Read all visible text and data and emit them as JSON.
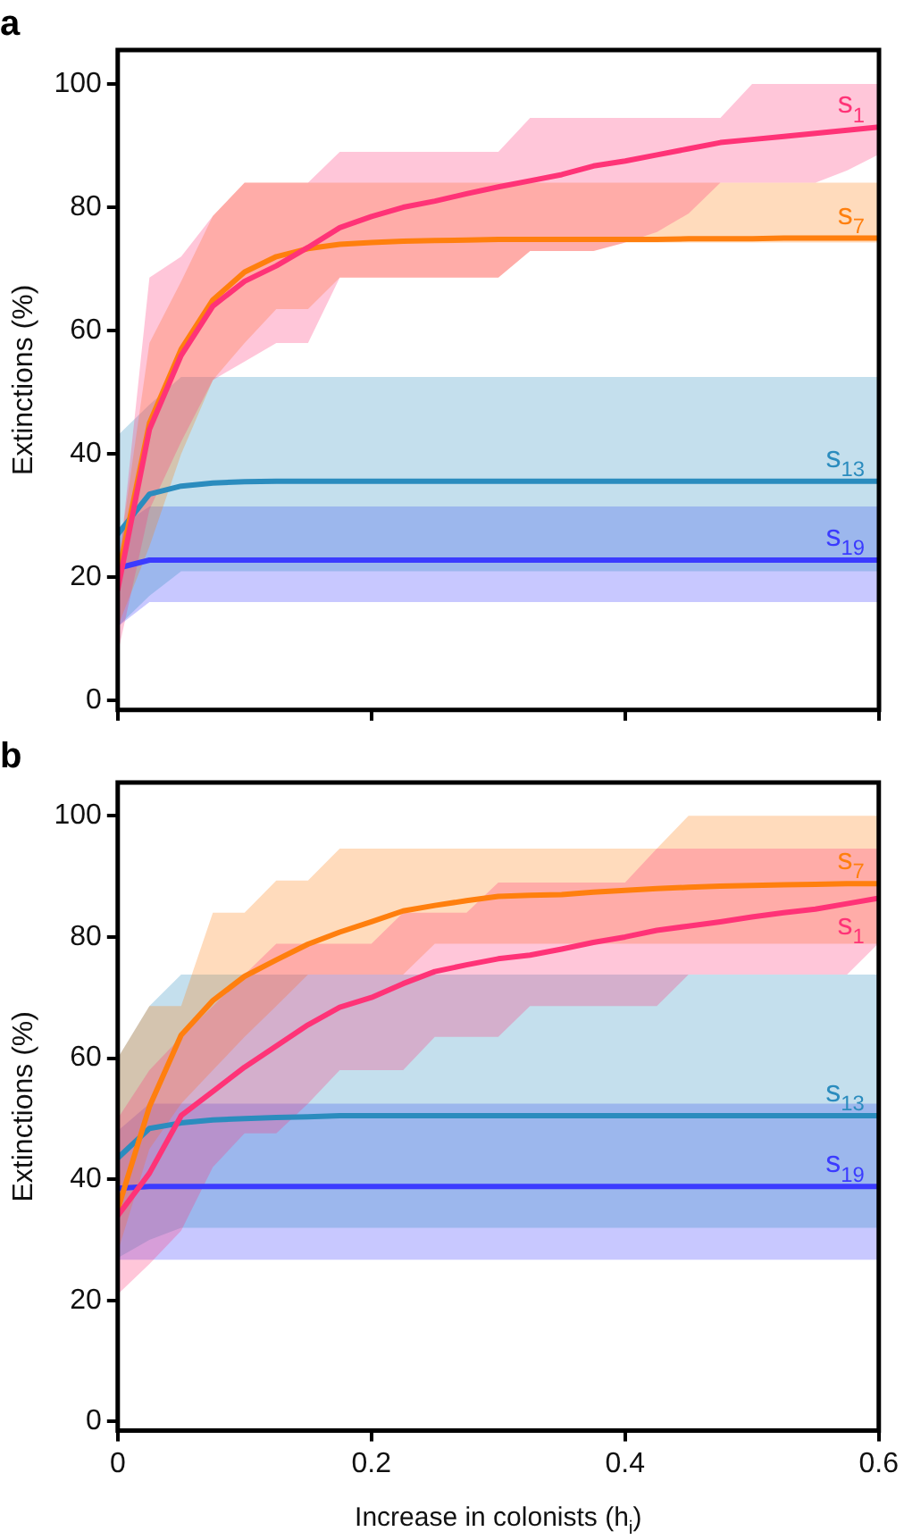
{
  "chart_data": [
    {
      "type": "line",
      "title": "a",
      "ylabel": "Extinctions (%)",
      "xlim": [
        0,
        0.6
      ],
      "xticks": [
        0,
        0.2,
        0.4,
        0.6
      ],
      "ylim": [
        -1.5,
        105.5
      ],
      "yticks": [
        0,
        20,
        40,
        60,
        80,
        100
      ],
      "tick_labels": "y",
      "x": [
        0,
        0.025,
        0.05,
        0.075,
        0.1,
        0.125,
        0.15,
        0.175,
        0.2,
        0.225,
        0.25,
        0.275,
        0.3,
        0.325,
        0.35,
        0.375,
        0.4,
        0.425,
        0.45,
        0.475,
        0.5,
        0.525,
        0.55,
        0.575,
        0.6
      ],
      "series": [
        {
          "name": "s$_{1}$",
          "color": "#ff3377",
          "values": [
            18,
            44,
            56,
            64,
            68,
            70.5,
            73.5,
            76.7,
            78.5,
            80,
            81,
            82.2,
            83.3,
            84.3,
            85.3,
            86.7,
            87.5,
            88.5,
            89.5,
            90.5,
            91,
            91.5,
            92,
            92.5,
            93
          ],
          "upper": [
            20,
            68.6,
            72,
            78.6,
            84,
            84,
            84,
            89,
            89,
            89,
            89,
            89,
            89,
            94.5,
            94.5,
            94.5,
            94.5,
            94.5,
            94.5,
            94.5,
            100,
            100,
            100,
            100,
            100
          ],
          "lower": [
            7.6,
            31,
            42,
            52,
            55,
            58,
            58,
            68.6,
            68.6,
            68.6,
            68.6,
            68.6,
            68.6,
            72.9,
            72.9,
            72.9,
            74.3,
            76,
            79,
            84,
            84,
            84,
            84,
            86,
            88.6
          ]
        },
        {
          "name": "s$_{7}$",
          "color": "#ff7f0e",
          "values": [
            20,
            45,
            57,
            65,
            69.5,
            72,
            73.3,
            74,
            74.3,
            74.5,
            74.6,
            74.7,
            74.8,
            74.8,
            74.8,
            74.8,
            74.8,
            74.8,
            74.9,
            74.9,
            74.9,
            75,
            75,
            75,
            75
          ],
          "upper": [
            22,
            58,
            68,
            78.6,
            84,
            84,
            84,
            84,
            84,
            84,
            84,
            84,
            84,
            84,
            84,
            84,
            84,
            84,
            84,
            84,
            84,
            84,
            84,
            84,
            84
          ],
          "lower": [
            12,
            25,
            40,
            52,
            58,
            63.5,
            63.5,
            68.6,
            68.6,
            68.6,
            68.6,
            68.6,
            68.6,
            72.9,
            72.9,
            72.9,
            74.3,
            74.3,
            74.3,
            74.3,
            74.3,
            74.3,
            74.3,
            74.3,
            74.3
          ]
        },
        {
          "name": "s$_{13}$",
          "color": "#2b8cbe",
          "values": [
            27,
            33.5,
            34.8,
            35.3,
            35.5,
            35.6,
            35.6,
            35.6,
            35.6,
            35.6,
            35.6,
            35.6,
            35.6,
            35.6,
            35.6,
            35.6,
            35.6,
            35.6,
            35.6,
            35.6,
            35.6,
            35.6,
            35.6,
            35.6,
            35.6
          ],
          "upper": [
            43,
            48,
            52.5,
            52.5,
            52.5,
            52.5,
            52.5,
            52.5,
            52.5,
            52.5,
            52.5,
            52.5,
            52.5,
            52.5,
            52.5,
            52.5,
            52.5,
            52.5,
            52.5,
            52.5,
            52.5,
            52.5,
            52.5,
            52.5,
            52.5
          ],
          "lower": [
            12,
            17,
            21,
            21,
            21,
            21,
            21,
            21,
            21,
            21,
            21,
            21,
            21,
            21,
            21,
            21,
            21,
            21,
            21,
            21,
            21,
            21,
            21,
            21,
            21
          ]
        },
        {
          "name": "s$_{19}$",
          "color": "#3b3bff",
          "values": [
            21.5,
            22.8,
            22.8,
            22.8,
            22.8,
            22.8,
            22.8,
            22.8,
            22.8,
            22.8,
            22.8,
            22.8,
            22.8,
            22.8,
            22.8,
            22.8,
            22.8,
            22.8,
            22.8,
            22.8,
            22.8,
            22.8,
            22.8,
            22.8,
            22.8
          ],
          "upper": [
            28,
            31.5,
            31.5,
            31.5,
            31.5,
            31.5,
            31.5,
            31.5,
            31.5,
            31.5,
            31.5,
            31.5,
            31.5,
            31.5,
            31.5,
            31.5,
            31.5,
            31.5,
            31.5,
            31.5,
            31.5,
            31.5,
            31.5,
            31.5,
            31.5
          ],
          "lower": [
            12,
            16,
            16,
            16,
            16,
            16,
            16,
            16,
            16,
            16,
            16,
            16,
            16,
            16,
            16,
            16,
            16,
            16,
            16,
            16,
            16,
            16,
            16,
            16,
            16
          ]
        }
      ]
    },
    {
      "type": "line",
      "title": "b",
      "xlabel": "Increase in colonists (h$_{i}$)",
      "ylabel": "Extinctions (%)",
      "xlim": [
        0,
        0.6
      ],
      "xticks": [
        0,
        0.2,
        0.4,
        0.6
      ],
      "ylim": [
        -1.5,
        105.5
      ],
      "yticks": [
        0,
        20,
        40,
        60,
        80,
        100
      ],
      "x": [
        0,
        0.025,
        0.05,
        0.075,
        0.1,
        0.125,
        0.15,
        0.175,
        0.2,
        0.225,
        0.25,
        0.275,
        0.3,
        0.325,
        0.35,
        0.375,
        0.4,
        0.425,
        0.45,
        0.475,
        0.5,
        0.525,
        0.55,
        0.575,
        0.6
      ],
      "series": [
        {
          "name": "s$_{1}$",
          "color": "#ff3377",
          "values": [
            34,
            41,
            50.5,
            54.5,
            58.5,
            62,
            65.5,
            68.4,
            70,
            72.3,
            74.3,
            75.4,
            76.4,
            77,
            78,
            79.1,
            80,
            81.1,
            81.8,
            82.5,
            83.3,
            84,
            84.6,
            85.5,
            86.4
          ],
          "upper": [
            50,
            58,
            63.5,
            68.6,
            73.8,
            78.9,
            78.9,
            78.9,
            78.9,
            84,
            84,
            84,
            89,
            89,
            89,
            89,
            89,
            94.6,
            94.6,
            94.6,
            94.6,
            94.6,
            94.6,
            94.6,
            94.6
          ],
          "lower": [
            21,
            26,
            31.5,
            42,
            47.6,
            47.6,
            52.5,
            58,
            58,
            58,
            63.5,
            63.5,
            63.5,
            68.6,
            68.6,
            68.6,
            68.6,
            68.6,
            73.8,
            73.8,
            73.8,
            73.8,
            73.8,
            73.8,
            79
          ]
        },
        {
          "name": "s$_{7}$",
          "color": "#ff7f0e",
          "values": [
            35,
            52,
            63.8,
            69.5,
            73.5,
            76.2,
            78.8,
            80.8,
            82.5,
            84.3,
            85.2,
            86,
            86.7,
            86.9,
            87,
            87.4,
            87.7,
            88,
            88.2,
            88.4,
            88.5,
            88.6,
            88.7,
            88.8,
            88.8
          ],
          "upper": [
            60,
            68.6,
            68.6,
            84,
            84,
            89.3,
            89.3,
            94.6,
            94.6,
            94.6,
            94.6,
            94.6,
            94.6,
            94.6,
            94.6,
            94.6,
            94.6,
            94.6,
            100,
            100,
            100,
            100,
            100,
            100,
            100
          ],
          "lower": [
            28,
            45,
            52.5,
            58,
            63.5,
            68.6,
            73.8,
            73.8,
            73.8,
            73.8,
            78.9,
            78.9,
            78.9,
            78.9,
            78.9,
            78.9,
            78.9,
            78.9,
            78.9,
            78.9,
            78.9,
            78.9,
            78.9,
            78.9,
            78.9
          ]
        },
        {
          "name": "s$_{13}$",
          "color": "#2b8cbe",
          "values": [
            43.5,
            48.4,
            49.3,
            49.8,
            50,
            50.2,
            50.3,
            50.5,
            50.5,
            50.5,
            50.5,
            50.5,
            50.5,
            50.5,
            50.5,
            50.5,
            50.5,
            50.5,
            50.5,
            50.5,
            50.5,
            50.5,
            50.5,
            50.5,
            50.5
          ],
          "upper": [
            60,
            68.6,
            73.8,
            73.8,
            73.8,
            73.8,
            73.8,
            73.8,
            73.8,
            73.8,
            73.8,
            73.8,
            73.8,
            73.8,
            73.8,
            73.8,
            73.8,
            73.8,
            73.8,
            73.8,
            73.8,
            73.8,
            73.8,
            73.8,
            73.8
          ],
          "lower": [
            27,
            30,
            32,
            32,
            32,
            32,
            32,
            32,
            32,
            32,
            32,
            32,
            32,
            32,
            32,
            32,
            32,
            32,
            32,
            32,
            32,
            32,
            32,
            32,
            32
          ]
        },
        {
          "name": "s$_{19}$",
          "color": "#3b3bff",
          "values": [
            38.5,
            38.8,
            38.8,
            38.8,
            38.8,
            38.8,
            38.8,
            38.8,
            38.8,
            38.8,
            38.8,
            38.8,
            38.8,
            38.8,
            38.8,
            38.8,
            38.8,
            38.8,
            38.8,
            38.8,
            38.8,
            38.8,
            38.8,
            38.8,
            38.8
          ],
          "upper": [
            48,
            52.5,
            52.5,
            52.5,
            52.5,
            52.5,
            52.5,
            52.5,
            52.5,
            52.5,
            52.5,
            52.5,
            52.5,
            52.5,
            52.5,
            52.5,
            52.5,
            52.5,
            52.5,
            52.5,
            52.5,
            52.5,
            52.5,
            52.5,
            52.5
          ],
          "lower": [
            26.7,
            26.7,
            26.7,
            26.7,
            26.7,
            26.7,
            26.7,
            26.7,
            26.7,
            26.7,
            26.7,
            26.7,
            26.7,
            26.7,
            26.7,
            26.7,
            26.7,
            26.7,
            26.7,
            26.7,
            26.7,
            26.7,
            26.7,
            26.7,
            26.7
          ]
        }
      ]
    }
  ]
}
